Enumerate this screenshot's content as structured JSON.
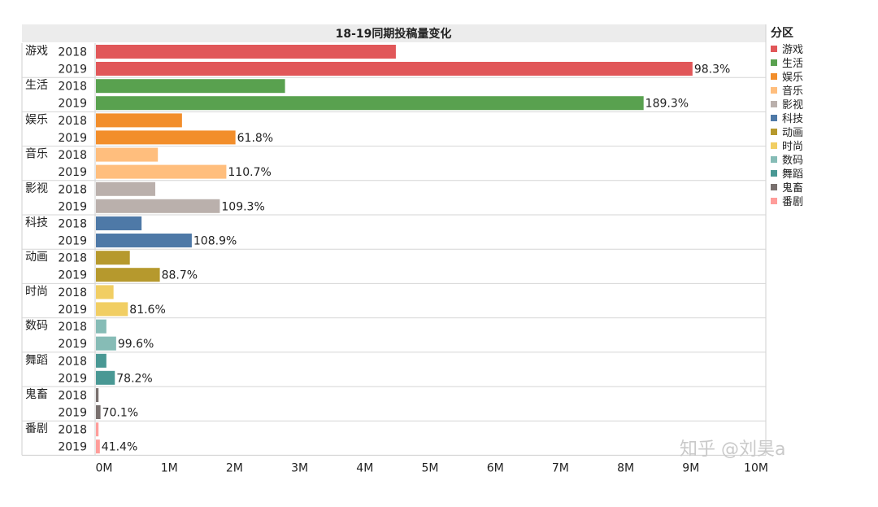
{
  "chart_data": {
    "type": "bar",
    "orientation": "horizontal",
    "title": "18-19同期投稿量变化",
    "legend_title": "分区",
    "legend_placement": "right",
    "xlim": [
      0,
      10000000
    ],
    "x_ticks": [
      {
        "value": 0,
        "label": "0M"
      },
      {
        "value": 1000000,
        "label": "1M"
      },
      {
        "value": 2000000,
        "label": "2M"
      },
      {
        "value": 3000000,
        "label": "3M"
      },
      {
        "value": 4000000,
        "label": "4M"
      },
      {
        "value": 5000000,
        "label": "5M"
      },
      {
        "value": 6000000,
        "label": "6M"
      },
      {
        "value": 7000000,
        "label": "7M"
      },
      {
        "value": 8000000,
        "label": "8M"
      },
      {
        "value": 9000000,
        "label": "9M"
      },
      {
        "value": 10000000,
        "label": "10M"
      }
    ],
    "years": [
      "2018",
      "2019"
    ],
    "groups": [
      {
        "name": "游戏",
        "color": "#e15759",
        "v2018": 4600000,
        "v2019": 9150000,
        "growth": "98.3%"
      },
      {
        "name": "生活",
        "color": "#59a14f",
        "v2018": 2900000,
        "v2019": 8400000,
        "growth": "189.3%"
      },
      {
        "name": "娱乐",
        "color": "#f28e2b",
        "v2018": 1320000,
        "v2019": 2140000,
        "growth": "61.8%"
      },
      {
        "name": "音乐",
        "color": "#ffbe7d",
        "v2018": 950000,
        "v2019": 2000000,
        "growth": "110.7%"
      },
      {
        "name": "影视",
        "color": "#bab0ac",
        "v2018": 910000,
        "v2019": 1900000,
        "growth": "109.3%"
      },
      {
        "name": "科技",
        "color": "#4e79a7",
        "v2018": 700000,
        "v2019": 1470000,
        "growth": "108.9%"
      },
      {
        "name": "动画",
        "color": "#b6992d",
        "v2018": 520000,
        "v2019": 980000,
        "growth": "88.7%"
      },
      {
        "name": "时尚",
        "color": "#f1ce63",
        "v2018": 270000,
        "v2019": 490000,
        "growth": "81.6%"
      },
      {
        "name": "数码",
        "color": "#86bcb6",
        "v2018": 160000,
        "v2019": 310000,
        "growth": "99.6%"
      },
      {
        "name": "舞蹈",
        "color": "#499894",
        "v2018": 160000,
        "v2019": 290000,
        "growth": "78.2%"
      },
      {
        "name": "鬼畜",
        "color": "#79706e",
        "v2018": 40000,
        "v2019": 70000,
        "growth": "70.1%"
      },
      {
        "name": "番剧",
        "color": "#ff9d9a",
        "v2018": 40000,
        "v2019": 60000,
        "growth": "41.4%"
      }
    ],
    "grid": false
  },
  "watermark": "知乎 @刘昊a"
}
